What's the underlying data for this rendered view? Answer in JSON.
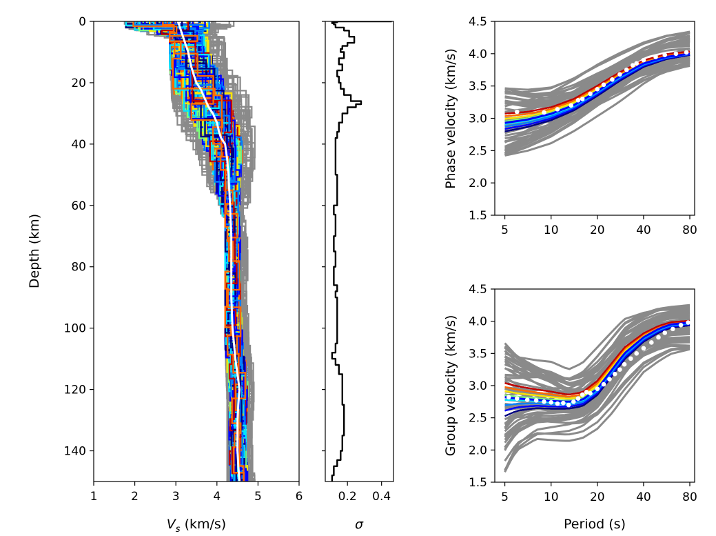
{
  "colors": {
    "ensemble_gray": "#8a8a8a",
    "mean_line": "#ffffff",
    "observed_points": "#ffffff",
    "sigma_line": "#000000",
    "colormap": [
      "#00007f",
      "#0000ff",
      "#0080ff",
      "#00e5ff",
      "#7dff7a",
      "#ffe600",
      "#ff6a00",
      "#c00000"
    ]
  },
  "chart_data": [
    {
      "id": "vs_profile",
      "type": "line",
      "title": "",
      "xlabel": "V_s (km/s)",
      "xlabel_parts": {
        "main": "V",
        "sub": "s",
        "rest": " (km/s)"
      },
      "ylabel": "Depth (km)",
      "xlim": [
        1,
        6
      ],
      "ylim": [
        150,
        0
      ],
      "y_inverted": true,
      "xticks": [
        1,
        2,
        3,
        4,
        5,
        6
      ],
      "yticks": [
        0,
        20,
        40,
        60,
        80,
        100,
        120,
        140
      ],
      "series": [
        {
          "role": "mean",
          "depth": [
            0,
            2,
            4,
            6,
            8,
            10,
            12,
            15,
            18,
            20,
            22,
            25,
            28,
            30,
            33,
            36,
            38,
            40,
            45,
            50,
            55,
            60,
            70,
            80,
            90,
            100,
            110,
            115,
            120,
            125,
            130,
            135,
            140,
            145,
            150
          ],
          "vs": [
            3.05,
            3.1,
            3.15,
            3.2,
            3.25,
            3.3,
            3.33,
            3.38,
            3.45,
            3.5,
            3.6,
            3.7,
            3.8,
            3.9,
            4.0,
            4.05,
            4.1,
            4.2,
            4.25,
            4.28,
            4.3,
            4.32,
            4.35,
            4.35,
            4.35,
            4.38,
            4.45,
            4.5,
            4.55,
            4.52,
            4.5,
            4.5,
            4.5,
            4.52,
            4.55
          ]
        },
        {
          "role": "envelope_min",
          "depth": [
            0,
            2,
            4,
            10,
            20,
            25,
            30,
            40,
            50,
            60,
            100,
            120,
            150
          ],
          "vs": [
            1.5,
            2.0,
            2.85,
            2.85,
            2.9,
            2.95,
            3.05,
            3.5,
            3.8,
            4.2,
            4.2,
            4.25,
            4.25
          ]
        },
        {
          "role": "envelope_max",
          "depth": [
            0,
            2,
            4,
            10,
            20,
            25,
            30,
            40,
            50,
            60,
            100,
            120,
            150
          ],
          "vs": [
            4.5,
            4.6,
            4.65,
            4.7,
            4.8,
            4.9,
            5.0,
            5.0,
            5.0,
            5.0,
            5.0,
            5.0,
            5.0
          ]
        }
      ]
    },
    {
      "id": "sigma_profile",
      "type": "line",
      "title": "",
      "xlabel": "σ",
      "ylabel": "",
      "xlim": [
        0.07,
        0.47
      ],
      "ylim": [
        150,
        0
      ],
      "y_inverted": true,
      "xticks": [
        0.2,
        0.4
      ],
      "xtick_labels": [
        "0.2",
        "0.4"
      ],
      "series": [
        {
          "name": "sigma",
          "depth": [
            0,
            0.3,
            0.6,
            1,
            2,
            3,
            5,
            7,
            8,
            9,
            10,
            12,
            14,
            16,
            18,
            20,
            22,
            24,
            26,
            27,
            28,
            30,
            33,
            36,
            38,
            40,
            45,
            50,
            55,
            60,
            63,
            65,
            70,
            75,
            80,
            86,
            88,
            90,
            95,
            100,
            105,
            108,
            110,
            112,
            115,
            118,
            120,
            125,
            130,
            135,
            140,
            143,
            145,
            148,
            150
          ],
          "sigma": [
            0.46,
            0.14,
            0.11,
            0.12,
            0.13,
            0.18,
            0.21,
            0.24,
            0.2,
            0.17,
            0.16,
            0.18,
            0.15,
            0.17,
            0.14,
            0.15,
            0.16,
            0.18,
            0.22,
            0.28,
            0.25,
            0.2,
            0.17,
            0.15,
            0.14,
            0.13,
            0.13,
            0.13,
            0.14,
            0.14,
            0.12,
            0.13,
            0.13,
            0.12,
            0.13,
            0.12,
            0.14,
            0.13,
            0.14,
            0.14,
            0.14,
            0.13,
            0.11,
            0.13,
            0.15,
            0.17,
            0.17,
            0.17,
            0.18,
            0.18,
            0.17,
            0.16,
            0.14,
            0.12,
            0.11
          ]
        }
      ]
    },
    {
      "id": "phase_velocity",
      "type": "line",
      "title": "",
      "xlabel": "",
      "ylabel": "Phase velocity (km/s)",
      "x_scale": "log",
      "xlim": [
        4.3,
        86
      ],
      "ylim": [
        1.5,
        4.5
      ],
      "xticks": [
        5,
        10,
        20,
        40,
        80
      ],
      "yticks": [
        1.5,
        2.0,
        2.5,
        3.0,
        3.5,
        4.0,
        4.5
      ],
      "ytick_labels": [
        "1.5",
        "2.0",
        "2.5",
        "3.0",
        "3.5",
        "4.0",
        "4.5"
      ],
      "period": [
        5,
        7,
        10,
        14,
        20,
        28,
        40,
        56,
        80
      ],
      "series": [
        {
          "role": "ensemble_max",
          "velocity": [
            3.5,
            3.5,
            3.55,
            3.7,
            3.9,
            4.05,
            4.2,
            4.3,
            4.35
          ]
        },
        {
          "role": "ensemble_min",
          "velocity": [
            2.4,
            2.48,
            2.6,
            2.78,
            3.0,
            3.2,
            3.45,
            3.65,
            3.8
          ]
        },
        {
          "role": "best_fit",
          "velocity": [
            2.93,
            2.98,
            3.07,
            3.2,
            3.42,
            3.65,
            3.85,
            3.95,
            4.0
          ]
        }
      ],
      "observed": {
        "period": [
          6,
          9,
          11,
          13.5,
          15,
          16,
          18,
          20,
          22,
          25,
          28,
          31,
          34,
          36,
          40,
          48,
          55,
          65,
          76
        ],
        "velocity": [
          3.1,
          3.09,
          3.14,
          3.2,
          3.28,
          3.3,
          3.38,
          3.45,
          3.52,
          3.6,
          3.68,
          3.75,
          3.82,
          3.85,
          3.9,
          3.95,
          3.98,
          4.0,
          4.02
        ]
      }
    },
    {
      "id": "group_velocity",
      "type": "line",
      "title": "",
      "xlabel": "Period (s)",
      "ylabel": "Group velocity (km/s)",
      "x_scale": "log",
      "xlim": [
        4.3,
        86
      ],
      "ylim": [
        1.5,
        4.5
      ],
      "xticks": [
        5,
        10,
        20,
        40,
        80
      ],
      "yticks": [
        1.5,
        2.0,
        2.5,
        3.0,
        3.5,
        4.0,
        4.5
      ],
      "ytick_labels": [
        "1.5",
        "2.0",
        "2.5",
        "3.0",
        "3.5",
        "4.0",
        "4.5"
      ],
      "period": [
        5,
        6,
        8,
        10,
        13,
        16,
        20,
        25,
        30,
        40,
        50,
        60,
        80
      ],
      "series": [
        {
          "role": "ensemble_max",
          "velocity": [
            3.7,
            3.6,
            3.5,
            3.45,
            3.3,
            3.4,
            3.65,
            3.9,
            4.1,
            4.2,
            4.25,
            4.25,
            4.25
          ]
        },
        {
          "role": "ensemble_min",
          "velocity": [
            1.65,
            2.0,
            2.2,
            2.2,
            2.2,
            2.25,
            2.4,
            2.65,
            2.9,
            3.25,
            3.4,
            3.5,
            3.55
          ]
        },
        {
          "role": "best_fit",
          "velocity": [
            2.82,
            2.8,
            2.78,
            2.76,
            2.75,
            2.78,
            2.95,
            3.25,
            3.5,
            3.75,
            3.88,
            3.95,
            3.98
          ]
        }
      ],
      "observed": {
        "period": [
          5.3,
          6,
          7,
          8,
          9,
          10,
          11,
          12,
          13,
          14,
          15,
          16,
          17,
          18,
          20,
          22,
          24,
          26,
          28,
          30,
          33,
          36,
          40,
          45,
          50,
          55,
          62,
          70,
          78
        ],
        "velocity": [
          2.82,
          2.8,
          2.78,
          2.77,
          2.75,
          2.74,
          2.72,
          2.73,
          2.7,
          2.75,
          2.8,
          2.86,
          2.9,
          2.88,
          2.95,
          3.02,
          3.1,
          3.18,
          3.25,
          3.33,
          3.42,
          3.5,
          3.58,
          3.67,
          3.75,
          3.82,
          3.88,
          3.94,
          3.98
        ]
      }
    }
  ]
}
